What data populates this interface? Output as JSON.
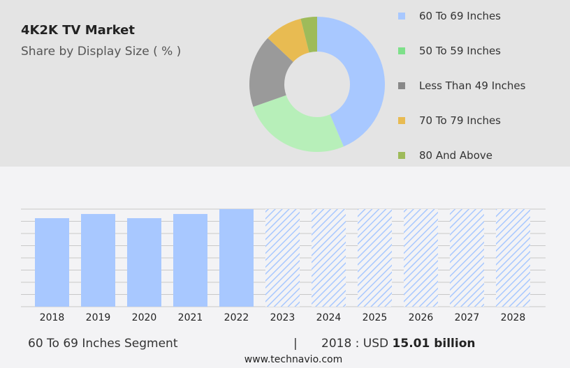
{
  "header": {
    "title": "4K2K TV Market",
    "subtitle": "Share by Display Size ( % )"
  },
  "chart_data": [
    {
      "type": "pie",
      "donut": true,
      "slices": [
        {
          "name": "60 To 69 Inches",
          "value": 43.6,
          "color": "#a8c8ff"
        },
        {
          "name": "50 To 59 Inches",
          "value": 26,
          "color": "#b7efb9",
          "legend_color": "#7ee08a"
        },
        {
          "name": "Less Than 49 Inches",
          "value": 17.4,
          "color": "#9a9a9a",
          "legend_color": "#888888"
        },
        {
          "name": "70 To 79 Inches",
          "value": 9.1,
          "color": "#e8bb52"
        },
        {
          "name": "80 And Above",
          "value": 3.9,
          "color": "#9ebb5a"
        }
      ]
    },
    {
      "type": "bar",
      "categories": [
        "2018",
        "2019",
        "2020",
        "2021",
        "2022",
        "2023",
        "2024",
        "2025",
        "2026",
        "2027",
        "2028"
      ],
      "values": [
        15.01,
        15.72,
        15.01,
        15.72,
        16.55,
        null,
        null,
        null,
        null,
        null,
        null
      ],
      "forecast_hatched": [
        "2023",
        "2024",
        "2025",
        "2026",
        "2027",
        "2028"
      ],
      "color": "#a8c8ff",
      "grid": true,
      "ylabel": "",
      "xlabel": ""
    }
  ],
  "footer": {
    "segment": "60 To 69 Inches Segment",
    "separator": "|",
    "year_label": "2018 : USD",
    "value": "15.01 billion",
    "url": "www.technavio.com"
  }
}
